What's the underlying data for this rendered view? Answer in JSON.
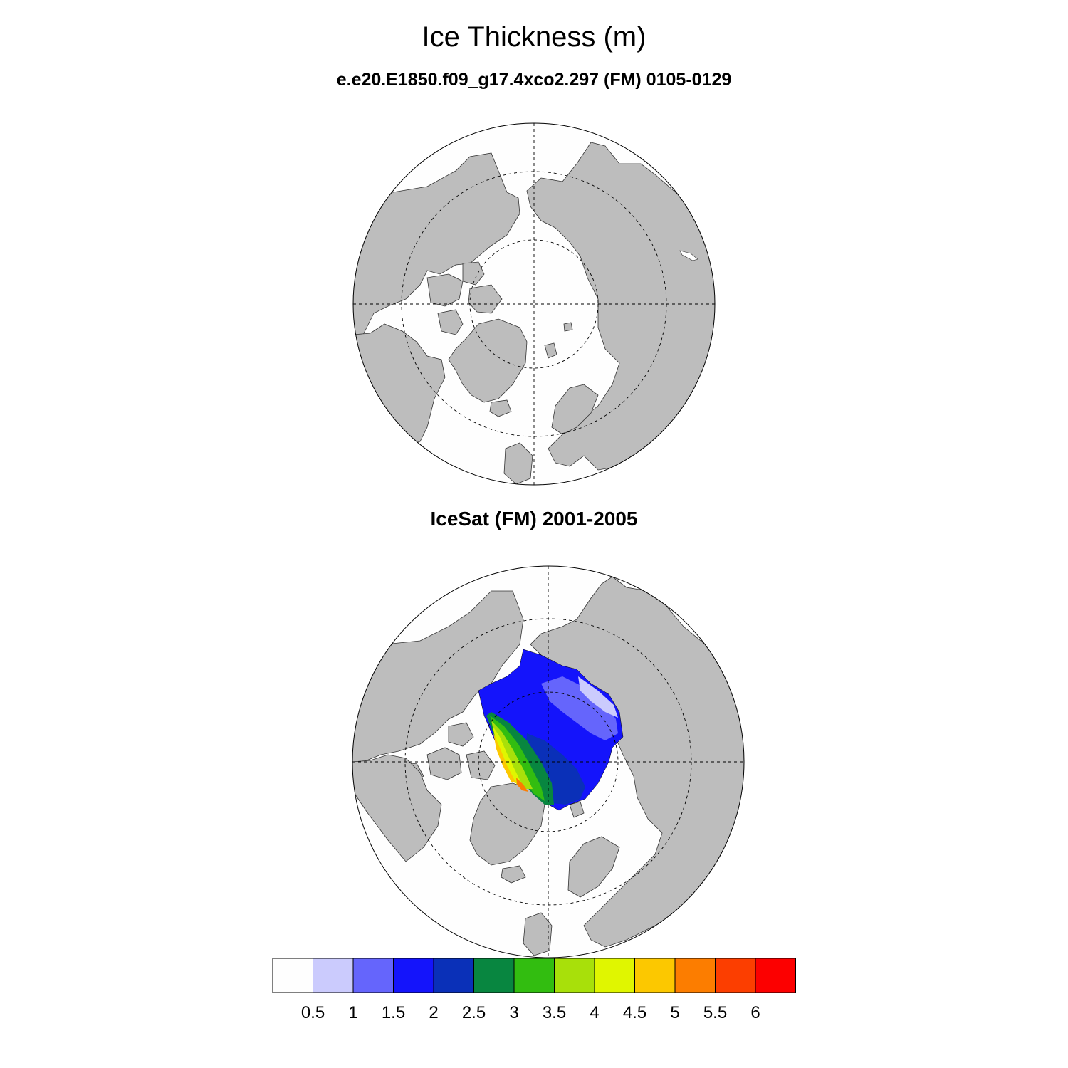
{
  "title": "Ice Thickness (m)",
  "panels": [
    {
      "subtitle": "e.e20.E1850.f09_g17.4xco2.297 (FM) 0105-0129"
    },
    {
      "subtitle": "IceSat (FM) 2001-2005"
    }
  ],
  "colorbar": {
    "labels": [
      "0.5",
      "1",
      "1.5",
      "2",
      "2.5",
      "3",
      "3.5",
      "4",
      "4.5",
      "5",
      "5.5",
      "6"
    ],
    "colors": [
      "#fefefe",
      "#cbcbfd",
      "#6565fc",
      "#1414fb",
      "#0a30b8",
      "#088640",
      "#32bd10",
      "#a8e00a",
      "#e0f600",
      "#fcc800",
      "#fc7d00",
      "#fc3e00",
      "#fc0000"
    ]
  },
  "colors": {
    "land": "#bdbdbd",
    "ocean": "#fefefe",
    "coast": "#000000",
    "grid": "#000000"
  }
}
